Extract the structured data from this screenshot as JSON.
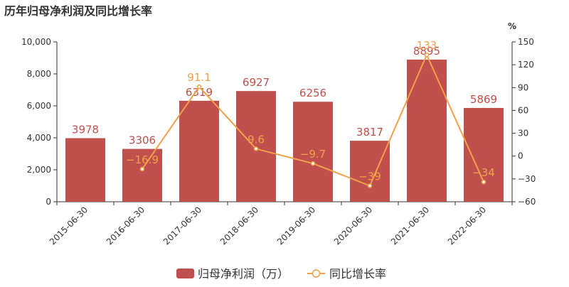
{
  "page": {
    "title": "历年归母净利润及同比增长率"
  },
  "chart_data": {
    "type": "bar",
    "categories": [
      "2015-06-30",
      "2016-06-30",
      "2017-06-30",
      "2018-06-30",
      "2019-06-30",
      "2020-06-30",
      "2021-06-30",
      "2022-06-30"
    ],
    "series": [
      {
        "name": "归母净利润（万）",
        "type": "bar",
        "axis": "left",
        "values": [
          3978,
          3306,
          6319,
          6927,
          6256,
          3817,
          8895,
          5869
        ],
        "labels": [
          "3978",
          "3306",
          "6319",
          "6927",
          "6256",
          "3817",
          "8895",
          "5869"
        ]
      },
      {
        "name": "同比增长率",
        "type": "line",
        "axis": "right",
        "values": [
          null,
          -16.9,
          91.1,
          9.6,
          -9.7,
          -39,
          133,
          -34
        ],
        "labels": [
          "",
          "−16.9",
          "91.1",
          "9.6",
          "−9.7",
          "−39",
          "133",
          "−34"
        ]
      }
    ],
    "left_axis": {
      "ylim": [
        0,
        10000
      ],
      "ticks": [
        "0",
        "2,000",
        "4,000",
        "6,000",
        "8,000",
        "10,000"
      ],
      "tick_values": [
        0,
        2000,
        4000,
        6000,
        8000,
        10000
      ]
    },
    "right_axis": {
      "ylabel": "%",
      "ylim": [
        -60,
        150
      ],
      "ticks": [
        "−60",
        "−30",
        "0",
        "30",
        "60",
        "90",
        "120",
        "150"
      ],
      "tick_values": [
        -60,
        -30,
        0,
        30,
        60,
        90,
        120,
        150
      ]
    },
    "legend_position": "bottom",
    "grid": false,
    "colors": {
      "bar": "#c0504d",
      "bar_label": "#c0504d",
      "line": "#f0a048",
      "line_label": "#f0a048",
      "axis": "#333333",
      "text": "#333333"
    }
  }
}
